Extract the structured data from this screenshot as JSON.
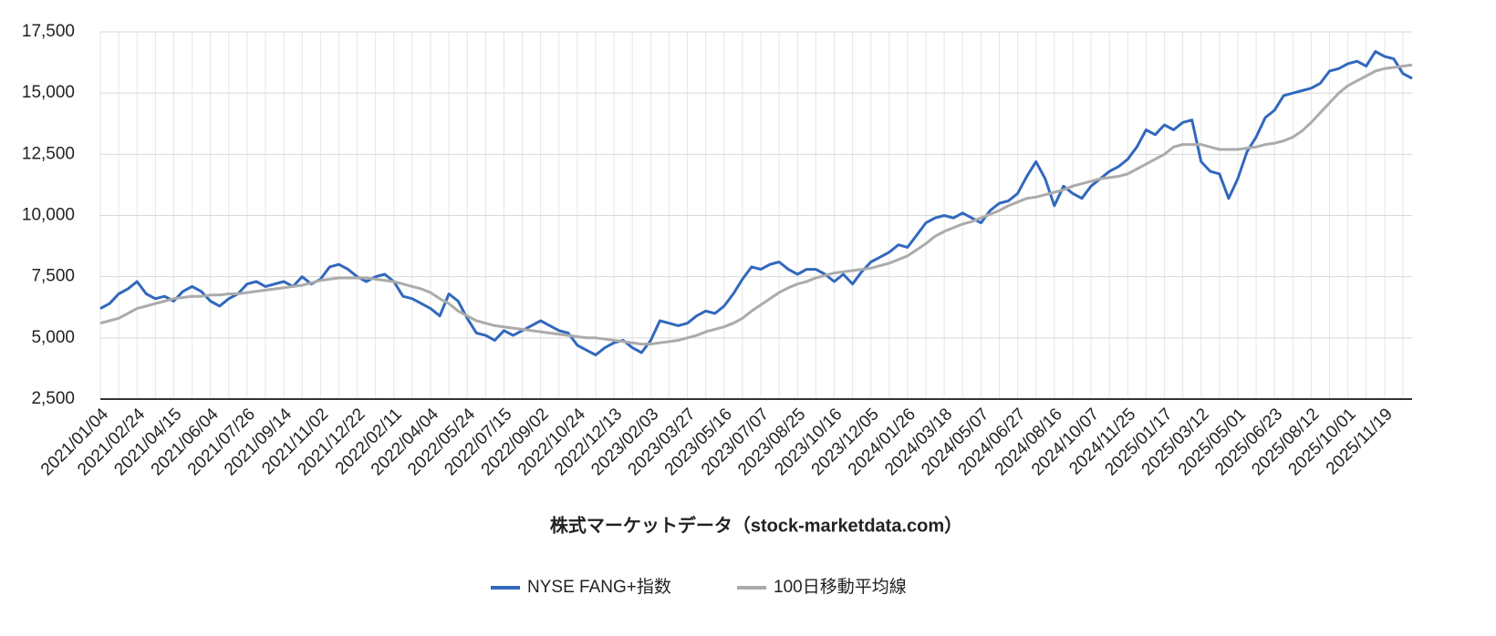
{
  "chart_data": {
    "type": "line",
    "x_label": "株式マーケットデータ（stock-marketdata.com）",
    "categories": [
      "2021/01/04",
      null,
      null,
      null,
      "2021/02/24",
      null,
      null,
      null,
      "2021/04/15",
      null,
      null,
      null,
      "2021/06/04",
      null,
      null,
      null,
      "2021/07/26",
      null,
      null,
      null,
      "2021/09/14",
      null,
      null,
      null,
      "2021/11/02",
      null,
      null,
      null,
      "2021/12/22",
      null,
      null,
      null,
      "2022/02/11",
      null,
      null,
      null,
      "2022/04/04",
      null,
      null,
      null,
      "2022/05/24",
      null,
      null,
      null,
      "2022/07/15",
      null,
      null,
      null,
      "2022/09/02",
      null,
      null,
      null,
      "2022/10/24",
      null,
      null,
      null,
      "2022/12/13",
      null,
      null,
      null,
      "2023/02/03",
      null,
      null,
      null,
      "2023/03/27",
      null,
      null,
      null,
      "2023/05/16",
      null,
      null,
      null,
      "2023/07/07",
      null,
      null,
      null,
      "2023/08/25",
      null,
      null,
      null,
      "2023/10/16",
      null,
      null,
      null,
      "2023/12/05",
      null,
      null,
      null,
      "2024/01/26",
      null,
      null,
      null,
      "2024/03/18",
      null,
      null,
      null,
      "2024/05/07",
      null,
      null,
      null,
      "2024/06/27",
      null,
      null,
      null,
      "2024/08/16",
      null,
      null,
      null,
      "2024/10/07",
      null,
      null,
      null,
      "2024/11/25",
      null,
      null,
      null,
      "2025/01/17",
      null,
      null,
      null,
      "2025/03/12",
      null,
      null,
      null,
      "2025/05/01",
      null,
      null,
      null,
      "2025/06/23",
      null,
      null,
      null,
      "2025/08/12",
      null,
      null,
      null,
      "2025/10/01",
      null,
      null,
      null,
      "2025/11/19",
      null,
      null,
      null
    ],
    "series": [
      {
        "name": "NYSE FANG+指数",
        "color": "#3268bd",
        "width": 3,
        "values": [
          6200,
          6400,
          6800,
          7000,
          7300,
          6800,
          6600,
          6700,
          6500,
          6900,
          7100,
          6900,
          6500,
          6300,
          6600,
          6800,
          7200,
          7300,
          7100,
          7200,
          7300,
          7100,
          7500,
          7200,
          7400,
          7900,
          8000,
          7800,
          7500,
          7300,
          7500,
          7600,
          7300,
          6700,
          6600,
          6400,
          6200,
          5900,
          6800,
          6500,
          5800,
          5200,
          5100,
          4900,
          5300,
          5100,
          5300,
          5500,
          5700,
          5500,
          5300,
          5200,
          4700,
          4500,
          4300,
          4600,
          4800,
          4900,
          4600,
          4400,
          4900,
          5700,
          5600,
          5500,
          5600,
          5900,
          6100,
          6000,
          6300,
          6800,
          7400,
          7900,
          7800,
          8000,
          8100,
          7800,
          7600,
          7800,
          7800,
          7600,
          7300,
          7600,
          7200,
          7700,
          8100,
          8300,
          8500,
          8800,
          8700,
          9200,
          9700,
          9900,
          10000,
          9900,
          10100,
          9900,
          9700,
          10200,
          10500,
          10600,
          10900,
          11600,
          12200,
          11500,
          10400,
          11200,
          10900,
          10700,
          11200,
          11500,
          11800,
          12000,
          12300,
          12800,
          13500,
          13300,
          13700,
          13500,
          13800,
          13900,
          12200,
          11800,
          11700,
          10700,
          11500,
          12600,
          13200,
          14000,
          14300,
          14900,
          15000,
          15100,
          15200,
          15400,
          15900,
          16000,
          16200,
          16300,
          16100,
          16700,
          16500,
          16400,
          15800,
          15600
        ]
      },
      {
        "name": "100日移動平均線",
        "color": "#ababab",
        "width": 3,
        "values": [
          5600,
          5700,
          5800,
          6000,
          6200,
          6300,
          6400,
          6500,
          6600,
          6650,
          6700,
          6700,
          6750,
          6750,
          6800,
          6800,
          6850,
          6900,
          6950,
          7000,
          7050,
          7100,
          7150,
          7250,
          7350,
          7400,
          7450,
          7450,
          7450,
          7450,
          7400,
          7350,
          7300,
          7200,
          7100,
          7000,
          6850,
          6600,
          6400,
          6100,
          5900,
          5700,
          5600,
          5500,
          5450,
          5400,
          5350,
          5300,
          5250,
          5200,
          5150,
          5100,
          5050,
          5000,
          5000,
          4950,
          4900,
          4850,
          4800,
          4750,
          4750,
          4800,
          4850,
          4900,
          5000,
          5100,
          5250,
          5350,
          5450,
          5600,
          5800,
          6100,
          6350,
          6600,
          6850,
          7050,
          7200,
          7300,
          7450,
          7550,
          7650,
          7700,
          7750,
          7800,
          7850,
          7950,
          8050,
          8200,
          8350,
          8600,
          8850,
          9150,
          9350,
          9500,
          9650,
          9750,
          9900,
          10050,
          10200,
          10400,
          10550,
          10700,
          10750,
          10850,
          10950,
          11050,
          11200,
          11300,
          11400,
          11500,
          11550,
          11600,
          11700,
          11900,
          12100,
          12300,
          12500,
          12800,
          12900,
          12900,
          12900,
          12800,
          12700,
          12700,
          12700,
          12750,
          12800,
          12900,
          12950,
          13050,
          13200,
          13450,
          13800,
          14200,
          14600,
          15000,
          15300,
          15500,
          15700,
          15900,
          16000,
          16050,
          16100,
          16150
        ]
      }
    ],
    "ylim": [
      2500,
      17500
    ],
    "yticks": [
      {
        "value": 2500,
        "label": "2,500"
      },
      {
        "value": 5000,
        "label": "5,000"
      },
      {
        "value": 7500,
        "label": "7,500"
      },
      {
        "value": 10000,
        "label": "10,000"
      },
      {
        "value": 12500,
        "label": "12,500"
      },
      {
        "value": 15000,
        "label": "15,000"
      },
      {
        "value": 17500,
        "label": "17,500"
      }
    ],
    "grid": true,
    "legend": "bottom"
  }
}
